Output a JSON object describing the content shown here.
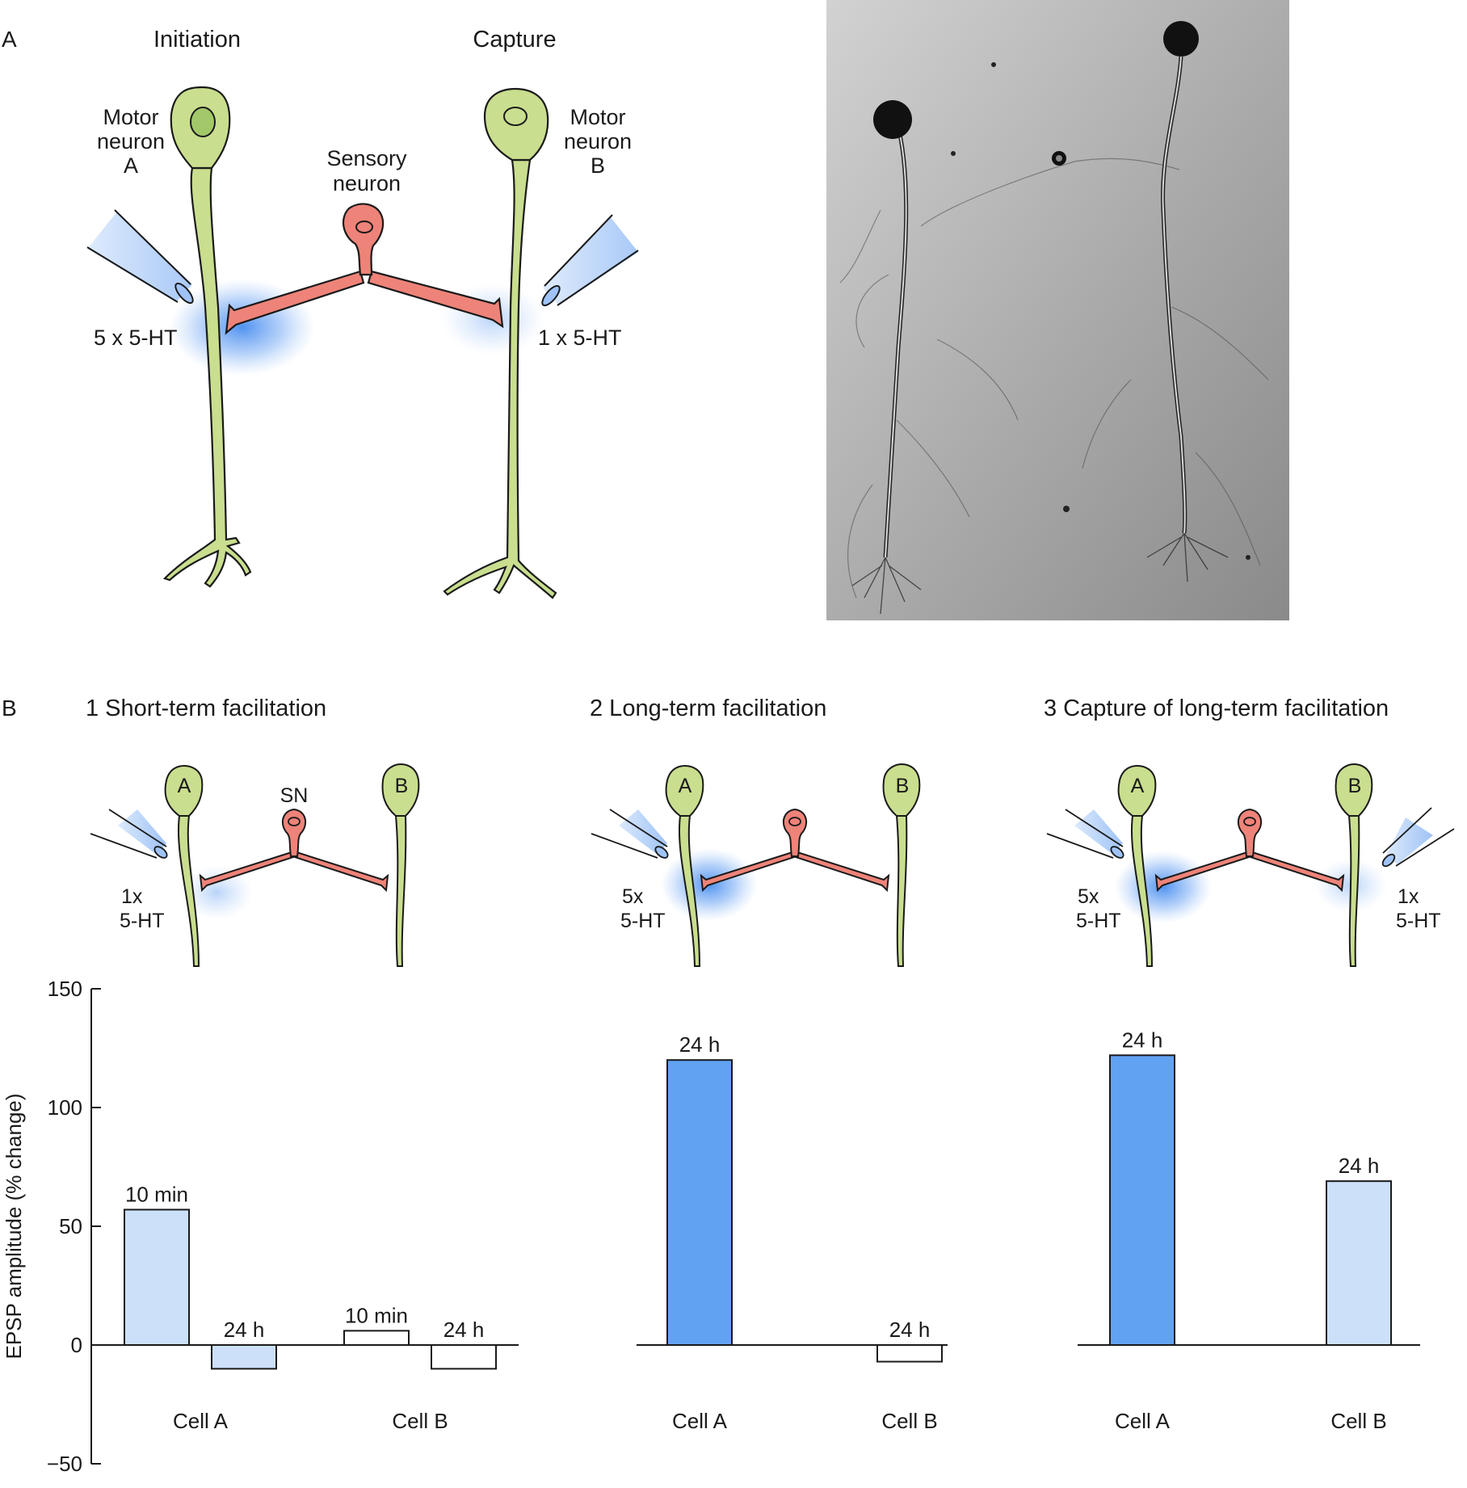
{
  "panel_a": {
    "label": "A",
    "initiation": "Initiation",
    "capture": "Capture",
    "motor_a": [
      "Motor",
      "neuron",
      "A"
    ],
    "motor_b": [
      "Motor",
      "neuron",
      "B"
    ],
    "sensory": [
      "Sensory",
      "neuron"
    ],
    "stim_left": "5 x 5-HT",
    "stim_right": "1 x 5-HT"
  },
  "panel_b": {
    "label": "B",
    "title_1": "1  Short-term facilitation",
    "title_2": "2  Long-term facilitation",
    "title_3": "3  Capture of long-term facilitation",
    "cell_a": "A",
    "cell_b": "B",
    "sn": "SN",
    "stim_1x": [
      "1x",
      "5-HT"
    ],
    "stim_5x": [
      "5x",
      "5-HT"
    ]
  },
  "colors": {
    "motor_neuron": "#c9de8e",
    "sensory_neuron": "#ee8379",
    "bar_dark": "#62a2f3",
    "bar_light": "#cce0fa",
    "bar_empty": "#ffffff"
  },
  "chart_data": {
    "type": "bar",
    "ylabel": "EPSP amplitude  (% change)",
    "ylim": [
      -50,
      150
    ],
    "yticks": [
      150,
      100,
      50,
      0,
      -50
    ],
    "groups": [
      {
        "name": "1  Short-term facilitation",
        "categories": [
          "Cell A",
          "Cell B"
        ],
        "bars": [
          {
            "cell": "Cell A",
            "label": "10 min",
            "value": 57,
            "fill": "light"
          },
          {
            "cell": "Cell A",
            "label": "24 h",
            "value": -10,
            "fill": "light"
          },
          {
            "cell": "Cell B",
            "label": "10 min",
            "value": 6,
            "fill": "empty"
          },
          {
            "cell": "Cell B",
            "label": "24 h",
            "value": -10,
            "fill": "empty"
          }
        ]
      },
      {
        "name": "2  Long-term facilitation",
        "categories": [
          "Cell A",
          "Cell B"
        ],
        "bars": [
          {
            "cell": "Cell A",
            "label": "24 h",
            "value": 120,
            "fill": "dark"
          },
          {
            "cell": "Cell B",
            "label": "24 h",
            "value": -7,
            "fill": "empty"
          }
        ]
      },
      {
        "name": "3  Capture of long-term facilitation",
        "categories": [
          "Cell A",
          "Cell B"
        ],
        "bars": [
          {
            "cell": "Cell A",
            "label": "24 h",
            "value": 122,
            "fill": "dark"
          },
          {
            "cell": "Cell B",
            "label": "24 h",
            "value": 69,
            "fill": "light"
          }
        ]
      }
    ]
  }
}
